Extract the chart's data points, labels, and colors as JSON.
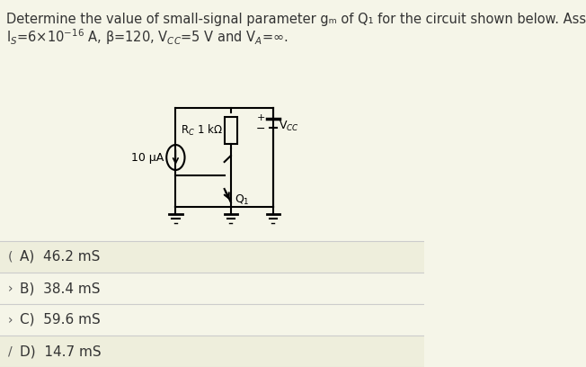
{
  "background_color": "#f5f5e8",
  "title_text": "Determine the value of small-signal parameter gₘ of Q₁ for the circuit shown below. Assume",
  "title_text2": "Iₛ=6×10⁻¹⁶ A, β=120, Vₘ₀=5 V and Vₐ=∞.",
  "panel_bg": "#f5f5e8",
  "circuit_bg": "#f5f5e8",
  "options": [
    {
      "label": "A)  46.2 mS",
      "selected": false,
      "bg": "#eeeedc"
    },
    {
      "label": "B)  38.4 mS",
      "selected": false,
      "bg": "#f5f5e8"
    },
    {
      "label": "C)  59.6 mS",
      "selected": true,
      "bg": "#f5f5e8"
    },
    {
      "label": "D)  14.7 mS",
      "selected": false,
      "bg": "#eeeedc"
    }
  ],
  "divider_color": "#cccccc",
  "text_color": "#333333",
  "circuit_line_color": "#000000",
  "font_size_title": 10.5,
  "font_size_options": 11
}
